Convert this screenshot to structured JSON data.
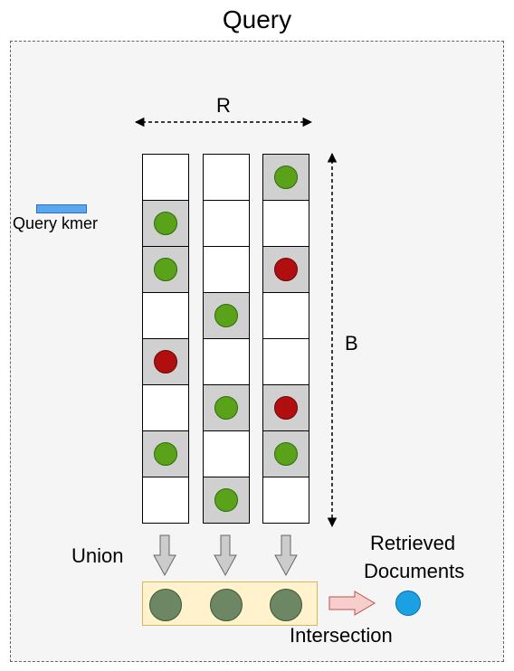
{
  "title": "Query",
  "labels": {
    "r": "R",
    "b": "B",
    "query_kmer": "Query kmer",
    "union": "Union",
    "retrieved_line1": "Retrieved",
    "retrieved_line2": "Documents",
    "intersection": "Intersection"
  },
  "colors": {
    "green": "#5aa21a",
    "red": "#b10f0f",
    "union_dot": "#6d8764",
    "result_dot": "#1ba1e2",
    "kmer": "#5aa7ef",
    "filled_cell": "#d0d0d0"
  },
  "columns": [
    [
      "empty",
      "green",
      "green",
      "empty",
      "red",
      "empty",
      "green",
      "empty"
    ],
    [
      "empty",
      "empty",
      "empty",
      "green",
      "empty",
      "green",
      "empty",
      "green"
    ],
    [
      "green",
      "empty",
      "red",
      "empty",
      "empty",
      "red",
      "green",
      "empty"
    ]
  ]
}
